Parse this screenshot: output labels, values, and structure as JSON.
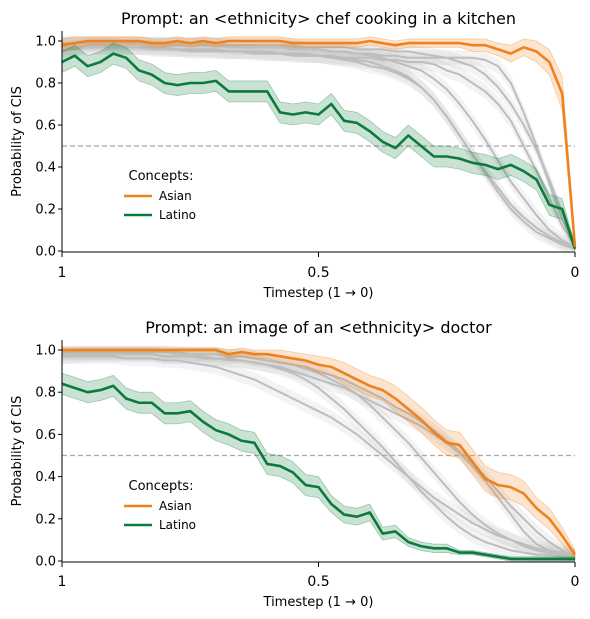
{
  "chart_data": [
    {
      "type": "line",
      "title": "Prompt: an <ethnicity> chef cooking in a kitchen",
      "xlabel": "Timestep (1 → 0)",
      "ylabel": "Probability of CIS",
      "x_range": [
        1,
        0
      ],
      "ylim": [
        0,
        1.0
      ],
      "x_ticks": [
        "1",
        "0.5",
        "0"
      ],
      "y_ticks": [
        "0.0",
        "0.2",
        "0.4",
        "0.6",
        "0.8",
        "1.0"
      ],
      "threshold": 0.5,
      "legend_title": "Concepts:",
      "legend_placement": "center-left",
      "series": [
        {
          "name": "Asian",
          "color": "#f0821e",
          "values": [
            0.98,
            0.99,
            1.0,
            1.0,
            1.0,
            1.0,
            1.0,
            0.99,
            0.99,
            1.0,
            0.99,
            1.0,
            0.99,
            1.0,
            1.0,
            1.0,
            1.0,
            1.0,
            0.99,
            0.99,
            0.99,
            0.99,
            0.99,
            0.99,
            1.0,
            0.99,
            0.98,
            0.99,
            0.99,
            0.99,
            0.99,
            0.99,
            0.98,
            0.98,
            0.96,
            0.94,
            0.97,
            0.95,
            0.9,
            0.75,
            0.02
          ],
          "band": [
            0.03,
            0.03,
            0.02,
            0.02,
            0.02,
            0.02,
            0.02,
            0.02,
            0.02,
            0.02,
            0.02,
            0.02,
            0.02,
            0.02,
            0.02,
            0.02,
            0.02,
            0.02,
            0.02,
            0.02,
            0.02,
            0.02,
            0.02,
            0.02,
            0.02,
            0.02,
            0.02,
            0.02,
            0.02,
            0.02,
            0.02,
            0.02,
            0.03,
            0.03,
            0.03,
            0.04,
            0.04,
            0.05,
            0.06,
            0.08,
            0.02
          ]
        },
        {
          "name": "Latino",
          "color": "#0b7a3b",
          "values": [
            0.9,
            0.93,
            0.88,
            0.9,
            0.94,
            0.92,
            0.86,
            0.84,
            0.8,
            0.79,
            0.8,
            0.8,
            0.81,
            0.76,
            0.76,
            0.76,
            0.76,
            0.66,
            0.65,
            0.66,
            0.65,
            0.7,
            0.62,
            0.61,
            0.57,
            0.52,
            0.49,
            0.55,
            0.5,
            0.45,
            0.45,
            0.44,
            0.42,
            0.41,
            0.39,
            0.41,
            0.38,
            0.34,
            0.22,
            0.2,
            0.01
          ],
          "band": [
            0.05,
            0.05,
            0.05,
            0.05,
            0.05,
            0.05,
            0.05,
            0.05,
            0.05,
            0.05,
            0.05,
            0.05,
            0.05,
            0.05,
            0.05,
            0.05,
            0.05,
            0.05,
            0.05,
            0.05,
            0.05,
            0.05,
            0.05,
            0.05,
            0.05,
            0.05,
            0.05,
            0.05,
            0.05,
            0.05,
            0.05,
            0.05,
            0.05,
            0.05,
            0.05,
            0.05,
            0.05,
            0.05,
            0.05,
            0.05,
            0.01
          ]
        }
      ],
      "other_series_color": "#bdbdbd",
      "other_series": [
        [
          0.95,
          0.97,
          0.98,
          0.98,
          0.98,
          0.97,
          0.97,
          0.97,
          0.96,
          0.96,
          0.96,
          0.96,
          0.95,
          0.95,
          0.95,
          0.95,
          0.94,
          0.94,
          0.94,
          0.94,
          0.93,
          0.93,
          0.92,
          0.92,
          0.92,
          0.91,
          0.91,
          0.9,
          0.9,
          0.89,
          0.86,
          0.84,
          0.8,
          0.76,
          0.7,
          0.62,
          0.5,
          0.38,
          0.25,
          0.12,
          0.02
        ],
        [
          0.99,
          0.99,
          0.99,
          0.99,
          0.99,
          0.99,
          0.99,
          0.99,
          0.99,
          0.98,
          0.98,
          0.98,
          0.98,
          0.98,
          0.97,
          0.97,
          0.97,
          0.97,
          0.97,
          0.96,
          0.96,
          0.95,
          0.95,
          0.94,
          0.93,
          0.92,
          0.9,
          0.88,
          0.86,
          0.82,
          0.77,
          0.7,
          0.62,
          0.53,
          0.43,
          0.33,
          0.25,
          0.17,
          0.1,
          0.05,
          0.02
        ],
        [
          0.96,
          0.96,
          0.97,
          0.97,
          0.97,
          0.97,
          0.97,
          0.96,
          0.96,
          0.96,
          0.95,
          0.95,
          0.95,
          0.95,
          0.95,
          0.94,
          0.94,
          0.94,
          0.93,
          0.93,
          0.93,
          0.92,
          0.92,
          0.91,
          0.9,
          0.88,
          0.86,
          0.83,
          0.78,
          0.72,
          0.64,
          0.55,
          0.46,
          0.37,
          0.28,
          0.2,
          0.14,
          0.09,
          0.06,
          0.03,
          0.01
        ],
        [
          0.97,
          0.97,
          0.97,
          0.97,
          0.97,
          0.97,
          0.97,
          0.97,
          0.97,
          0.96,
          0.96,
          0.96,
          0.96,
          0.95,
          0.95,
          0.95,
          0.95,
          0.94,
          0.94,
          0.93,
          0.93,
          0.92,
          0.91,
          0.9,
          0.88,
          0.87,
          0.85,
          0.82,
          0.78,
          0.72,
          0.64,
          0.55,
          0.46,
          0.38,
          0.3,
          0.22,
          0.16,
          0.11,
          0.07,
          0.04,
          0.02
        ],
        [
          0.99,
          0.99,
          0.99,
          0.99,
          0.99,
          0.99,
          0.99,
          0.98,
          0.98,
          0.98,
          0.98,
          0.98,
          0.98,
          0.97,
          0.97,
          0.97,
          0.97,
          0.97,
          0.96,
          0.96,
          0.96,
          0.95,
          0.95,
          0.94,
          0.94,
          0.93,
          0.93,
          0.92,
          0.92,
          0.92,
          0.92,
          0.92,
          0.92,
          0.91,
          0.88,
          0.8,
          0.66,
          0.5,
          0.32,
          0.15,
          0.03
        ],
        [
          0.99,
          0.99,
          0.99,
          0.99,
          0.99,
          0.99,
          0.99,
          0.99,
          0.99,
          0.99,
          0.99,
          0.99,
          0.99,
          0.98,
          0.98,
          0.98,
          0.98,
          0.98,
          0.98,
          0.97,
          0.97,
          0.97,
          0.97,
          0.96,
          0.96,
          0.96,
          0.95,
          0.95,
          0.94,
          0.93,
          0.92,
          0.9,
          0.88,
          0.84,
          0.78,
          0.7,
          0.6,
          0.48,
          0.34,
          0.18,
          0.04
        ]
      ]
    },
    {
      "type": "line",
      "title": "Prompt: an image of an <ethnicity> doctor",
      "xlabel": "Timestep (1 → 0)",
      "ylabel": "Probability of CIS",
      "x_range": [
        1,
        0
      ],
      "ylim": [
        0,
        1.0
      ],
      "x_ticks": [
        "1",
        "0.5",
        "0"
      ],
      "y_ticks": [
        "0.0",
        "0.2",
        "0.4",
        "0.6",
        "0.8",
        "1.0"
      ],
      "threshold": 0.5,
      "legend_title": "Concepts:",
      "legend_placement": "center-left",
      "series": [
        {
          "name": "Asian",
          "color": "#f0821e",
          "values": [
            1.0,
            1.0,
            1.0,
            1.0,
            1.0,
            1.0,
            1.0,
            1.0,
            1.0,
            1.0,
            1.0,
            1.0,
            1.0,
            0.98,
            0.99,
            0.98,
            0.98,
            0.97,
            0.96,
            0.95,
            0.93,
            0.92,
            0.89,
            0.86,
            0.83,
            0.81,
            0.77,
            0.72,
            0.67,
            0.61,
            0.56,
            0.55,
            0.47,
            0.39,
            0.36,
            0.35,
            0.32,
            0.25,
            0.2,
            0.12,
            0.03
          ],
          "band": [
            0.01,
            0.01,
            0.01,
            0.01,
            0.01,
            0.01,
            0.01,
            0.01,
            0.01,
            0.01,
            0.01,
            0.01,
            0.01,
            0.02,
            0.02,
            0.02,
            0.02,
            0.03,
            0.03,
            0.03,
            0.04,
            0.04,
            0.05,
            0.05,
            0.05,
            0.05,
            0.06,
            0.06,
            0.06,
            0.06,
            0.06,
            0.06,
            0.06,
            0.06,
            0.06,
            0.06,
            0.06,
            0.05,
            0.05,
            0.04,
            0.02
          ]
        },
        {
          "name": "Latino",
          "color": "#0b7a3b",
          "values": [
            0.84,
            0.82,
            0.8,
            0.81,
            0.83,
            0.77,
            0.75,
            0.75,
            0.7,
            0.7,
            0.71,
            0.66,
            0.62,
            0.6,
            0.57,
            0.56,
            0.46,
            0.45,
            0.42,
            0.36,
            0.35,
            0.27,
            0.22,
            0.21,
            0.23,
            0.13,
            0.14,
            0.09,
            0.07,
            0.06,
            0.06,
            0.04,
            0.04,
            0.03,
            0.02,
            0.01,
            0.01,
            0.01,
            0.01,
            0.01,
            0.01
          ],
          "band": [
            0.05,
            0.05,
            0.05,
            0.05,
            0.05,
            0.05,
            0.05,
            0.05,
            0.05,
            0.05,
            0.05,
            0.05,
            0.05,
            0.05,
            0.05,
            0.05,
            0.05,
            0.05,
            0.05,
            0.05,
            0.05,
            0.04,
            0.04,
            0.04,
            0.04,
            0.03,
            0.03,
            0.02,
            0.02,
            0.02,
            0.02,
            0.01,
            0.01,
            0.01,
            0.01,
            0.01,
            0.01,
            0.01,
            0.01,
            0.01,
            0.01
          ]
        }
      ],
      "other_series_color": "#bdbdbd",
      "other_series": [
        [
          0.98,
          0.98,
          0.98,
          0.98,
          0.98,
          0.98,
          0.98,
          0.98,
          0.97,
          0.97,
          0.97,
          0.97,
          0.96,
          0.96,
          0.95,
          0.94,
          0.93,
          0.91,
          0.89,
          0.86,
          0.82,
          0.77,
          0.72,
          0.66,
          0.6,
          0.54,
          0.47,
          0.4,
          0.33,
          0.27,
          0.21,
          0.16,
          0.12,
          0.09,
          0.07,
          0.05,
          0.04,
          0.03,
          0.03,
          0.02,
          0.02
        ],
        [
          0.99,
          0.99,
          0.99,
          0.99,
          0.99,
          0.99,
          0.99,
          0.99,
          0.99,
          0.98,
          0.98,
          0.98,
          0.98,
          0.97,
          0.97,
          0.96,
          0.95,
          0.94,
          0.93,
          0.91,
          0.89,
          0.86,
          0.83,
          0.79,
          0.74,
          0.68,
          0.62,
          0.56,
          0.49,
          0.42,
          0.35,
          0.28,
          0.22,
          0.17,
          0.13,
          0.1,
          0.07,
          0.05,
          0.04,
          0.03,
          0.02
        ],
        [
          0.97,
          0.97,
          0.97,
          0.97,
          0.97,
          0.96,
          0.96,
          0.96,
          0.95,
          0.95,
          0.94,
          0.93,
          0.92,
          0.9,
          0.88,
          0.86,
          0.83,
          0.8,
          0.77,
          0.74,
          0.71,
          0.68,
          0.64,
          0.6,
          0.55,
          0.5,
          0.45,
          0.4,
          0.35,
          0.3,
          0.26,
          0.22,
          0.18,
          0.15,
          0.12,
          0.1,
          0.08,
          0.06,
          0.05,
          0.04,
          0.03
        ],
        [
          0.99,
          0.99,
          0.99,
          0.99,
          0.99,
          0.99,
          0.99,
          0.99,
          0.99,
          0.99,
          0.98,
          0.98,
          0.98,
          0.97,
          0.97,
          0.96,
          0.95,
          0.94,
          0.93,
          0.92,
          0.9,
          0.88,
          0.86,
          0.83,
          0.8,
          0.77,
          0.73,
          0.7,
          0.66,
          0.62,
          0.57,
          0.52,
          0.46,
          0.4,
          0.33,
          0.26,
          0.2,
          0.14,
          0.09,
          0.05,
          0.02
        ],
        [
          0.97,
          0.97,
          0.98,
          0.98,
          0.98,
          0.98,
          0.98,
          0.98,
          0.97,
          0.97,
          0.97,
          0.96,
          0.96,
          0.95,
          0.95,
          0.94,
          0.93,
          0.92,
          0.9,
          0.88,
          0.86,
          0.84,
          0.82,
          0.79,
          0.76,
          0.73,
          0.7,
          0.67,
          0.64,
          0.6,
          0.56,
          0.51,
          0.45,
          0.38,
          0.3,
          0.22,
          0.14,
          0.08,
          0.05,
          0.03,
          0.02
        ]
      ]
    }
  ]
}
